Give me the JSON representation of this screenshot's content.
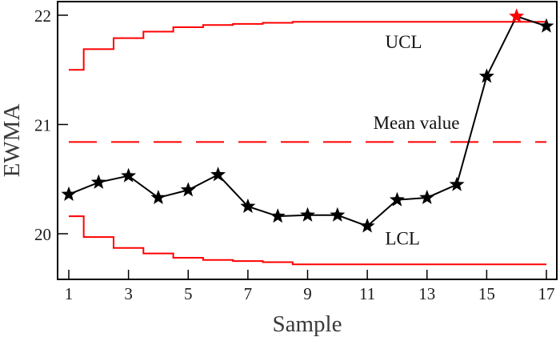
{
  "chart_data": {
    "type": "line",
    "title": "",
    "xlabel": "Sample",
    "ylabel": "EWMA",
    "xlim": [
      0.6,
      17.35
    ],
    "ylim": [
      19.6,
      22.12
    ],
    "grid": false,
    "x_ticks": [
      1,
      3,
      5,
      7,
      9,
      11,
      13,
      15,
      17
    ],
    "x_tick_labels": [
      "1",
      "3",
      "5",
      "7",
      "9",
      "11",
      "13",
      "15",
      "17"
    ],
    "y_ticks": [
      20,
      21,
      22
    ],
    "y_tick_labels": [
      "20",
      "21",
      "22"
    ],
    "x": [
      1,
      2,
      3,
      4,
      5,
      6,
      7,
      8,
      9,
      10,
      11,
      12,
      13,
      14,
      15,
      16,
      17
    ],
    "series": [
      {
        "name": "EWMA",
        "kind": "line-markers",
        "marker": "star",
        "color": "#000000",
        "values": [
          20.36,
          20.47,
          20.53,
          20.33,
          20.4,
          20.54,
          20.25,
          20.16,
          20.17,
          20.17,
          20.07,
          20.31,
          20.33,
          20.45,
          21.44,
          21.99,
          21.9
        ],
        "highlight_points": [
          {
            "x": 16,
            "color": "#ff0000"
          }
        ]
      },
      {
        "name": "UCL",
        "kind": "step",
        "color": "#ff0000",
        "values": [
          21.5,
          21.69,
          21.79,
          21.85,
          21.89,
          21.91,
          21.92,
          21.93,
          21.94,
          21.94,
          21.94,
          21.94,
          21.94,
          21.94,
          21.94,
          21.94,
          21.94
        ]
      },
      {
        "name": "Mean value",
        "kind": "dashed",
        "color": "#ff0000",
        "value": 20.84
      },
      {
        "name": "LCL",
        "kind": "step",
        "color": "#ff0000",
        "values": [
          20.16,
          19.97,
          19.87,
          19.82,
          19.78,
          19.76,
          19.75,
          19.74,
          19.72,
          19.72,
          19.72,
          19.72,
          19.72,
          19.72,
          19.72,
          19.72,
          19.72
        ]
      }
    ],
    "annotations": [
      {
        "text": "UCL",
        "x": 11.6,
        "y": 21.7
      },
      {
        "text": "Mean value",
        "x": 11.2,
        "y": 20.96
      },
      {
        "text": "LCL",
        "x": 11.6,
        "y": 19.9
      }
    ],
    "legend": "none"
  }
}
